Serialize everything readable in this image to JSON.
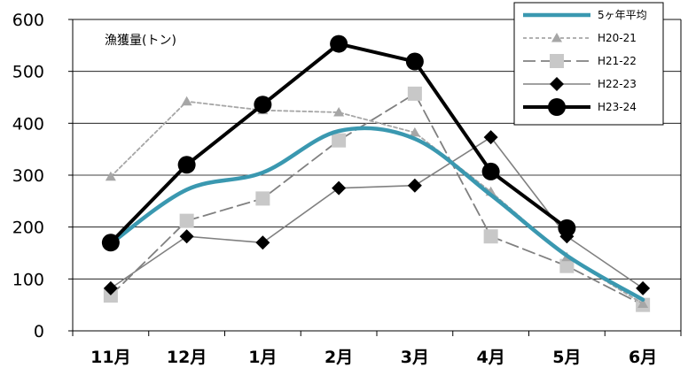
{
  "chart_data": {
    "type": "line",
    "title": "",
    "unit_label": "漁獲量(トン)",
    "xlabel": "",
    "ylabel": "",
    "ylim": [
      0,
      600
    ],
    "yticks": [
      0,
      100,
      200,
      300,
      400,
      500,
      600
    ],
    "grid": "horizontal",
    "legend_position": "top-right",
    "categories": [
      "11月",
      "12月",
      "1月",
      "2月",
      "3月",
      "4月",
      "5月",
      "6月"
    ],
    "series": [
      {
        "name": "5ヶ年平均",
        "values": [
          168,
          272,
          305,
          385,
          370,
          262,
          145,
          60
        ],
        "color": "#3a98b0",
        "style": "solid-thick-smooth",
        "marker": "none"
      },
      {
        "name": "H20-21",
        "values": [
          297,
          442,
          425,
          421,
          382,
          268,
          142,
          52
        ],
        "color": "#a6a6a6",
        "style": "short-dash",
        "marker": "triangle"
      },
      {
        "name": "H21-22",
        "values": [
          68,
          212,
          255,
          367,
          457,
          182,
          125,
          50
        ],
        "color": "#808080",
        "style": "long-dash",
        "marker": "square"
      },
      {
        "name": "H22-23",
        "values": [
          82,
          182,
          170,
          275,
          280,
          373,
          182,
          82
        ],
        "color": "#808080",
        "style": "solid",
        "marker": "diamond"
      },
      {
        "name": "H23-24",
        "values": [
          170,
          320,
          436,
          553,
          519,
          307,
          198,
          null
        ],
        "color": "#000000",
        "style": "solid-thick",
        "marker": "circle"
      }
    ]
  }
}
